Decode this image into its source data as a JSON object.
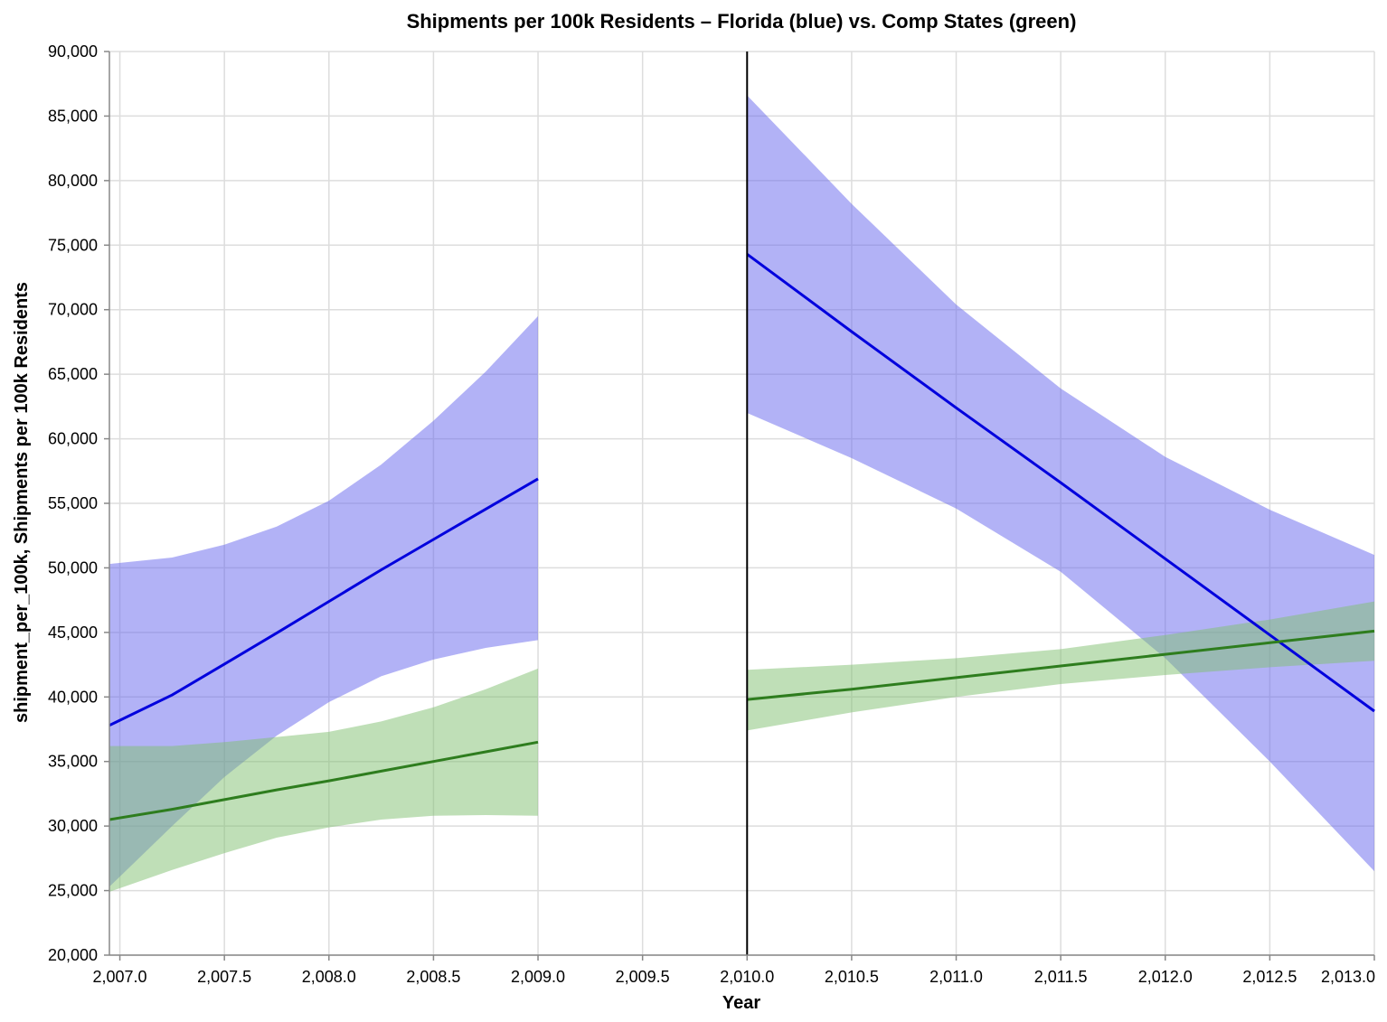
{
  "chart_data": {
    "type": "area",
    "title": "Shipments per 100k Residents – Florida (blue) vs. Comp States (green)",
    "xlabel": "Year",
    "ylabel": "shipment_per_100k, Shipments per 100k Residents",
    "xlim": [
      2006.95,
      2013.0
    ],
    "ylim": [
      20000,
      90000
    ],
    "x_ticks": [
      2007.0,
      2007.5,
      2008.0,
      2008.5,
      2009.0,
      2009.5,
      2010.0,
      2010.5,
      2011.0,
      2011.5,
      2012.0,
      2012.5,
      2013.0
    ],
    "x_tick_labels": [
      "2,007.0",
      "2,007.5",
      "2,008.0",
      "2,008.5",
      "2,009.0",
      "2,009.5",
      "2,010.0",
      "2,010.5",
      "2,011.0",
      "2,011.5",
      "2,012.0",
      "2,012.5",
      "2,013.0"
    ],
    "y_ticks": [
      20000,
      25000,
      30000,
      35000,
      40000,
      45000,
      50000,
      55000,
      60000,
      65000,
      70000,
      75000,
      80000,
      85000,
      90000
    ],
    "y_tick_labels": [
      "20,000",
      "25,000",
      "30,000",
      "35,000",
      "40,000",
      "45,000",
      "50,000",
      "55,000",
      "60,000",
      "65,000",
      "70,000",
      "75,000",
      "80,000",
      "85,000",
      "90,000"
    ],
    "grid": true,
    "legend": "none",
    "vertical_rule": {
      "x": 2010.0,
      "color": "#000000"
    },
    "series": [
      {
        "color": "#0000dd",
        "band_color": "#6666ee",
        "band_opacity": 0.5,
        "segments": [
          {
            "x": [
              2006.95,
              2007.25,
              2007.5,
              2007.75,
              2008.0,
              2008.25,
              2008.5,
              2008.75,
              2009.0
            ],
            "y": [
              37800,
              40150,
              42550,
              44950,
              47400,
              49850,
              52200,
              54550,
              56900
            ],
            "lower": [
              25300,
              30000,
              33800,
              37000,
              39600,
              41600,
              42900,
              43800,
              44400
            ],
            "upper": [
              50300,
              50800,
              51800,
              53200,
              55200,
              58000,
              61400,
              65200,
              69500
            ]
          },
          {
            "x": [
              2010.0,
              2010.5,
              2011.0,
              2011.5,
              2012.0,
              2012.5,
              2013.0
            ],
            "y": [
              74300,
              68300,
              62400,
              56600,
              50700,
              44800,
              38900
            ],
            "lower": [
              62000,
              58500,
              54600,
              49700,
              43000,
              35000,
              26500
            ],
            "upper": [
              86600,
              78200,
              70400,
              63900,
              58600,
              54500,
              51000
            ]
          }
        ]
      },
      {
        "color": "#2e7d1e",
        "band_color": "#7fbf6f",
        "band_opacity": 0.5,
        "segments": [
          {
            "x": [
              2006.95,
              2007.25,
              2007.5,
              2007.75,
              2008.0,
              2008.25,
              2008.5,
              2008.75,
              2009.0
            ],
            "y": [
              30500,
              31300,
              32050,
              32800,
              33500,
              34250,
              35000,
              35750,
              36500
            ],
            "lower": [
              24900,
              26600,
              27900,
              29100,
              29900,
              30500,
              30800,
              30850,
              30800
            ],
            "upper": [
              36200,
              36200,
              36500,
              36900,
              37300,
              38100,
              39200,
              40600,
              42200
            ]
          },
          {
            "x": [
              2010.0,
              2010.5,
              2011.0,
              2011.5,
              2012.0,
              2012.5,
              2013.0
            ],
            "y": [
              39800,
              40600,
              41500,
              42400,
              43300,
              44200,
              45100
            ],
            "lower": [
              37400,
              38800,
              40000,
              41000,
              41700,
              42300,
              42800
            ],
            "upper": [
              42100,
              42500,
              43000,
              43700,
              44800,
              46000,
              47400
            ]
          }
        ]
      }
    ]
  }
}
